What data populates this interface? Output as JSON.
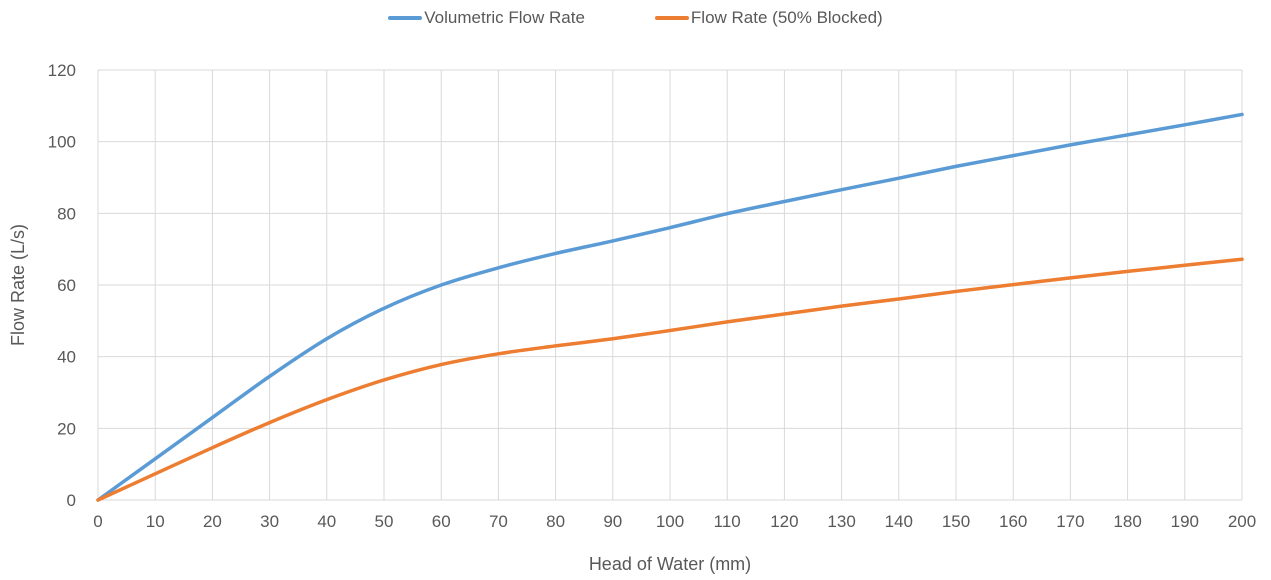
{
  "chart_data": {
    "type": "line",
    "xlabel": "Head of Water (mm)",
    "ylabel": "Flow Rate (L/s)",
    "xlim": [
      0,
      200
    ],
    "ylim": [
      0,
      120
    ],
    "x_ticks": [
      0,
      10,
      20,
      30,
      40,
      50,
      60,
      70,
      80,
      90,
      100,
      110,
      120,
      130,
      140,
      150,
      160,
      170,
      180,
      190,
      200
    ],
    "y_ticks": [
      0,
      20,
      40,
      60,
      80,
      100,
      120
    ],
    "grid": true,
    "legend_position": "top-center",
    "x": [
      0,
      10,
      20,
      30,
      40,
      50,
      60,
      70,
      80,
      90,
      100,
      110,
      120,
      130,
      140,
      150,
      160,
      170,
      180,
      190,
      200
    ],
    "series": [
      {
        "name": "Volumetric Flow Rate",
        "color": "#5B9BD5",
        "values": [
          0,
          11.5,
          23,
          34.5,
          45,
          53.5,
          60,
          64.8,
          68.8,
          72.3,
          76,
          79.9,
          83.3,
          86.6,
          89.8,
          93.1,
          96.1,
          99.1,
          101.9,
          104.7,
          107.6
        ]
      },
      {
        "name": "Flow Rate (50% Blocked)",
        "color": "#ED7D31",
        "values": [
          0,
          7.3,
          14.6,
          21.6,
          28,
          33.5,
          37.8,
          40.8,
          43,
          45,
          47.3,
          49.7,
          51.9,
          54.1,
          56.1,
          58.2,
          60.1,
          62,
          63.8,
          65.5,
          67.2
        ]
      }
    ]
  }
}
